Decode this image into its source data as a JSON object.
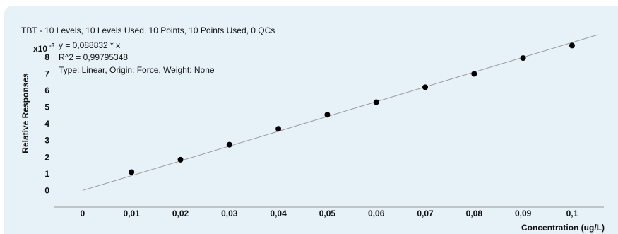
{
  "colors": {
    "panel_background": "#e7f2f8",
    "axis": "#999999",
    "fit_line": "#9a9a9a",
    "points": "#000000",
    "text": "#111111"
  },
  "chart_data": {
    "type": "scatter",
    "title": "TBT - 10 Levels, 10 Levels Used, 10 Points, 10 Points Used, 0 QCs",
    "equation": "y = 0,088832 * x",
    "r_squared": "R^2 = 0,99795348",
    "fit_info": "Type: Linear, Origin: Force, Weight: None",
    "xlabel": "Concentration (ug/L)",
    "ylabel": "Relative Responses",
    "y_multiplier": "x10",
    "y_multiplier_exp": "-3",
    "x_ticks": [
      "0",
      "0,01",
      "0,02",
      "0,03",
      "0,04",
      "0,05",
      "0,06",
      "0,07",
      "0,08",
      "0,09",
      "0,1"
    ],
    "y_ticks": [
      "0",
      "1",
      "2",
      "3",
      "4",
      "5",
      "6",
      "7",
      "8"
    ],
    "xlim": [
      -0.0059,
      0.1065
    ],
    "ylim": [
      -1.0,
      9.1
    ],
    "fit": {
      "slope": 88.832,
      "x_range": [
        0,
        0.1053
      ]
    },
    "points": [
      {
        "x": 0.01,
        "y": 1.1
      },
      {
        "x": 0.02,
        "y": 1.85
      },
      {
        "x": 0.03,
        "y": 2.75
      },
      {
        "x": 0.04,
        "y": 3.7
      },
      {
        "x": 0.05,
        "y": 4.55
      },
      {
        "x": 0.06,
        "y": 5.3
      },
      {
        "x": 0.07,
        "y": 6.2
      },
      {
        "x": 0.08,
        "y": 7.0
      },
      {
        "x": 0.09,
        "y": 7.95
      },
      {
        "x": 0.1,
        "y": 8.7
      }
    ],
    "grid": false
  }
}
